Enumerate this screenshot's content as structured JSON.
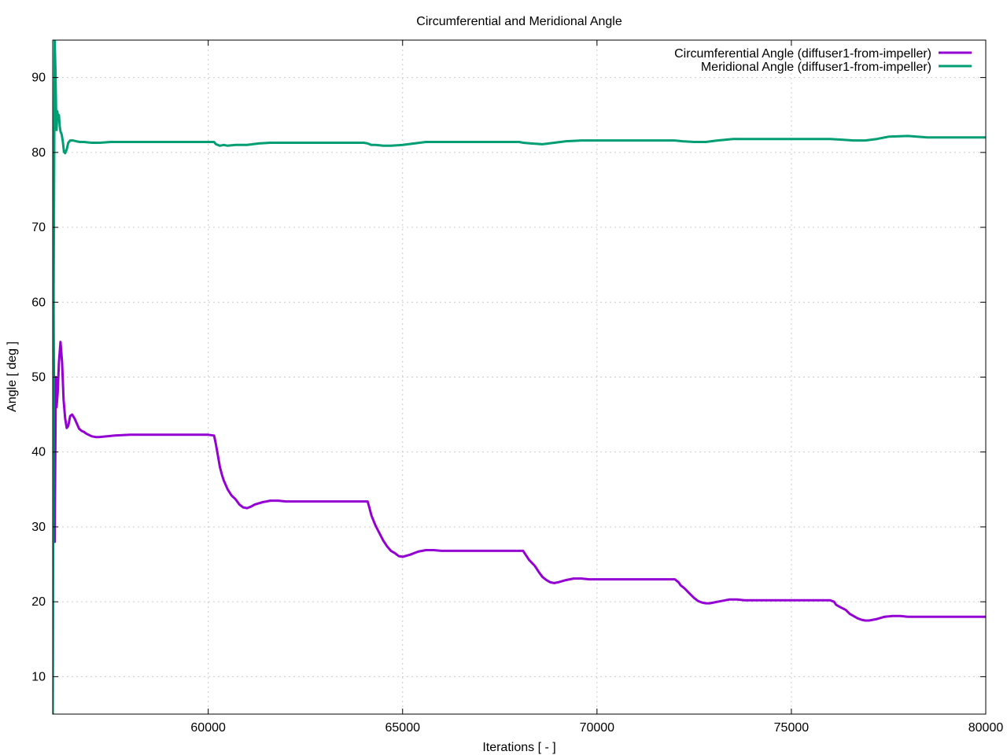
{
  "chart_data": {
    "type": "line",
    "title": "Circumferential and Meridional Angle",
    "xlabel": "Iterations [ - ]",
    "ylabel": "Angle [ deg ]",
    "xlim": [
      56000,
      80000
    ],
    "ylim": [
      5,
      95
    ],
    "xticks": [
      60000,
      65000,
      70000,
      75000,
      80000
    ],
    "yticks": [
      10,
      20,
      30,
      40,
      50,
      60,
      70,
      80,
      90
    ],
    "grid": true,
    "legend_position": "top-right",
    "series": [
      {
        "name": "Circumferential Angle (diffuser1-from-impeller)",
        "color": "#9400d3",
        "x": [
          56000,
          56020,
          56050,
          56080,
          56100,
          56130,
          56160,
          56200,
          56240,
          56280,
          56320,
          56360,
          56400,
          56450,
          56500,
          56560,
          56620,
          56680,
          56750,
          56800,
          56850,
          56920,
          57000,
          57100,
          57200,
          57400,
          57600,
          58000,
          58500,
          59000,
          59500,
          60000,
          60150,
          60200,
          60250,
          60300,
          60350,
          60400,
          60500,
          60600,
          60700,
          60800,
          60900,
          61000,
          61100,
          61200,
          61400,
          61600,
          61800,
          62000,
          62500,
          63000,
          63500,
          64000,
          64100,
          64150,
          64200,
          64300,
          64400,
          64500,
          64600,
          64700,
          64800,
          64900,
          65000,
          65200,
          65400,
          65600,
          65800,
          66000,
          66500,
          67000,
          67500,
          68000,
          68100,
          68150,
          68250,
          68400,
          68500,
          68600,
          68700,
          68800,
          68900,
          69000,
          69200,
          69400,
          69600,
          69800,
          70000,
          70500,
          71000,
          71500,
          72000,
          72100,
          72150,
          72250,
          72400,
          72500,
          72600,
          72700,
          72800,
          72900,
          73000,
          73200,
          73400,
          73600,
          73800,
          74000,
          74500,
          75000,
          75500,
          76000,
          76100,
          76150,
          76250,
          76400,
          76500,
          76600,
          76700,
          76800,
          76900,
          77000,
          77200,
          77400,
          77600,
          77800,
          78000,
          78300,
          78600,
          78700,
          79000,
          79500,
          80000
        ],
        "values": [
          5,
          62,
          28,
          50,
          46,
          48,
          52,
          54.7,
          52,
          47,
          44.5,
          43.2,
          43.5,
          44.8,
          45,
          44.5,
          43.8,
          43.1,
          42.8,
          42.7,
          42.5,
          42.3,
          42.1,
          42.0,
          42.0,
          42.1,
          42.2,
          42.3,
          42.3,
          42.3,
          42.3,
          42.3,
          42.2,
          41.0,
          39.5,
          38.0,
          37.0,
          36.2,
          35.0,
          34.2,
          33.7,
          33.0,
          32.6,
          32.5,
          32.7,
          33.0,
          33.3,
          33.5,
          33.5,
          33.4,
          33.4,
          33.4,
          33.4,
          33.4,
          33.4,
          32.5,
          31.5,
          30.2,
          29.2,
          28.2,
          27.4,
          26.8,
          26.5,
          26.1,
          26.0,
          26.3,
          26.7,
          26.9,
          26.9,
          26.8,
          26.8,
          26.8,
          26.8,
          26.8,
          26.8,
          26.4,
          25.6,
          24.8,
          24.0,
          23.3,
          22.9,
          22.6,
          22.5,
          22.6,
          22.9,
          23.1,
          23.1,
          23.0,
          23.0,
          23.0,
          23.0,
          23.0,
          23.0,
          22.6,
          22.2,
          21.8,
          21.0,
          20.5,
          20.1,
          19.9,
          19.8,
          19.8,
          19.9,
          20.1,
          20.3,
          20.3,
          20.2,
          20.2,
          20.2,
          20.2,
          20.2,
          20.2,
          20.0,
          19.6,
          19.3,
          18.9,
          18.4,
          18.1,
          17.8,
          17.6,
          17.5,
          17.5,
          17.7,
          18.0,
          18.1,
          18.1,
          18.0,
          18.0,
          18.0,
          18.0,
          18.0,
          18.0,
          18.0
        ]
      },
      {
        "name": "Meridional Angle (diffuser1-from-impeller)",
        "color": "#009e73",
        "x": [
          56000,
          56020,
          56050,
          56070,
          56090,
          56100,
          56120,
          56140,
          56160,
          56180,
          56200,
          56230,
          56260,
          56290,
          56320,
          56360,
          56400,
          56450,
          56520,
          56600,
          56700,
          56800,
          57000,
          57200,
          57500,
          58000,
          58500,
          59000,
          59500,
          60000,
          60150,
          60200,
          60300,
          60400,
          60500,
          60700,
          61000,
          61300,
          61600,
          62000,
          62500,
          63000,
          63500,
          64000,
          64100,
          64200,
          64300,
          64500,
          64700,
          65000,
          65300,
          65600,
          66000,
          66500,
          67000,
          67500,
          68000,
          68100,
          68300,
          68600,
          68900,
          69200,
          69600,
          70000,
          70500,
          71000,
          71500,
          72000,
          72200,
          72500,
          72800,
          73100,
          73500,
          74000,
          74500,
          75000,
          75500,
          76000,
          76300,
          76600,
          76900,
          77200,
          77500,
          78000,
          78500,
          79000,
          79500,
          80000
        ],
        "values": [
          5,
          55,
          95,
          91,
          85,
          83,
          85.5,
          84.5,
          85,
          83.5,
          82.8,
          82.4,
          81.5,
          80.1,
          79.9,
          80.4,
          81.3,
          81.6,
          81.6,
          81.5,
          81.4,
          81.4,
          81.3,
          81.3,
          81.4,
          81.4,
          81.4,
          81.4,
          81.4,
          81.4,
          81.4,
          81.1,
          80.9,
          81.0,
          80.9,
          81.0,
          81.0,
          81.2,
          81.3,
          81.3,
          81.3,
          81.3,
          81.3,
          81.3,
          81.2,
          81.0,
          81.0,
          80.9,
          80.9,
          81.0,
          81.2,
          81.4,
          81.4,
          81.4,
          81.4,
          81.4,
          81.4,
          81.3,
          81.2,
          81.1,
          81.3,
          81.5,
          81.6,
          81.6,
          81.6,
          81.6,
          81.6,
          81.6,
          81.5,
          81.4,
          81.4,
          81.6,
          81.8,
          81.8,
          81.8,
          81.8,
          81.8,
          81.8,
          81.7,
          81.6,
          81.6,
          81.8,
          82.1,
          82.2,
          82.0,
          82.0,
          82.0,
          82.0
        ]
      }
    ]
  }
}
